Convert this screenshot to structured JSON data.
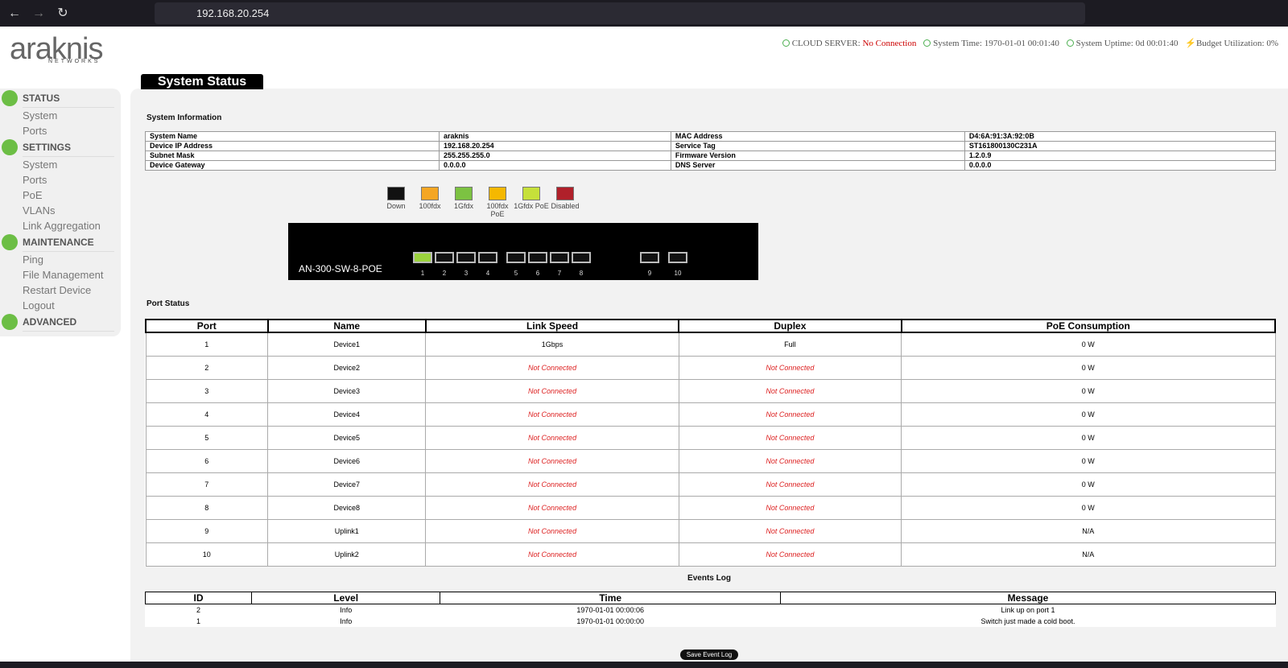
{
  "browser": {
    "url": "192.168.20.254"
  },
  "logo": {
    "name": "araknis",
    "tagline": "NETWORKS"
  },
  "status_bar": {
    "cloud_label": "CLOUD SERVER:",
    "cloud_value": "No Connection",
    "time_label": "System Time:",
    "time_value": "1970-01-01 00:01:40",
    "uptime_label": "System Uptime:",
    "uptime_value": "0d 00:01:40",
    "budget_label": "Budget Utilization:",
    "budget_value": "0%"
  },
  "sidebar": [
    {
      "title": "STATUS",
      "items": [
        "System",
        "Ports"
      ]
    },
    {
      "title": "SETTINGS",
      "items": [
        "System",
        "Ports",
        "PoE",
        "VLANs",
        "Link Aggregation"
      ]
    },
    {
      "title": "MAINTENANCE",
      "items": [
        "Ping",
        "File Management",
        "Restart Device",
        "Logout"
      ]
    },
    {
      "title": "ADVANCED",
      "items": []
    }
  ],
  "page_title": "System Status",
  "system_info": {
    "title": "System Information",
    "rows": [
      [
        "System Name",
        "araknis",
        "MAC Address",
        "D4:6A:91:3A:92:0B"
      ],
      [
        "Device IP Address",
        "192.168.20.254",
        "Service Tag",
        "ST161800130C231A"
      ],
      [
        "Subnet Mask",
        "255.255.255.0",
        "Firmware Version",
        "1.2.0.9"
      ],
      [
        "Device Gateway",
        "0.0.0.0",
        "DNS Server",
        "0.0.0.0"
      ]
    ]
  },
  "legend": [
    {
      "label": "Down",
      "color": "#111111"
    },
    {
      "label": "100fdx",
      "color": "#f5a623"
    },
    {
      "label": "1Gfdx",
      "color": "#7cc242"
    },
    {
      "label": "100fdx PoE",
      "color": "#f5b800"
    },
    {
      "label": "1Gfdx PoE",
      "color": "#c6e03a"
    },
    {
      "label": "Disabled",
      "color": "#b0202a"
    }
  ],
  "switch": {
    "model": "AN-300-SW-8-POE",
    "ports": [
      {
        "label": "1",
        "color": "#9bd33d"
      },
      {
        "label": "2",
        "color": "#111111"
      },
      {
        "label": "3",
        "color": "#111111"
      },
      {
        "label": "4",
        "color": "#111111"
      },
      {
        "label": "5",
        "color": "#111111"
      },
      {
        "label": "6",
        "color": "#111111"
      },
      {
        "label": "7",
        "color": "#111111"
      },
      {
        "label": "8",
        "color": "#111111"
      },
      {
        "label": "9",
        "color": "#111111"
      },
      {
        "label": "10",
        "color": "#111111"
      }
    ]
  },
  "port_status": {
    "title": "Port Status",
    "columns": [
      "Port",
      "Name",
      "Link Speed",
      "Duplex",
      "PoE Consumption"
    ],
    "rows": [
      {
        "cells": [
          "1",
          "Device1",
          "1Gbps",
          "Full",
          "0 W"
        ],
        "connected": true
      },
      {
        "cells": [
          "2",
          "Device2",
          "Not Connected",
          "Not Connected",
          "0 W"
        ],
        "connected": false
      },
      {
        "cells": [
          "3",
          "Device3",
          "Not Connected",
          "Not Connected",
          "0 W"
        ],
        "connected": false
      },
      {
        "cells": [
          "4",
          "Device4",
          "Not Connected",
          "Not Connected",
          "0 W"
        ],
        "connected": false
      },
      {
        "cells": [
          "5",
          "Device5",
          "Not Connected",
          "Not Connected",
          "0 W"
        ],
        "connected": false
      },
      {
        "cells": [
          "6",
          "Device6",
          "Not Connected",
          "Not Connected",
          "0 W"
        ],
        "connected": false
      },
      {
        "cells": [
          "7",
          "Device7",
          "Not Connected",
          "Not Connected",
          "0 W"
        ],
        "connected": false
      },
      {
        "cells": [
          "8",
          "Device8",
          "Not Connected",
          "Not Connected",
          "0 W"
        ],
        "connected": false
      },
      {
        "cells": [
          "9",
          "Uplink1",
          "Not Connected",
          "Not Connected",
          "N/A"
        ],
        "connected": false
      },
      {
        "cells": [
          "10",
          "Uplink2",
          "Not Connected",
          "Not Connected",
          "N/A"
        ],
        "connected": false
      }
    ]
  },
  "events_log": {
    "title": "Events Log",
    "columns": [
      "ID",
      "Level",
      "Time",
      "Message"
    ],
    "rows": [
      [
        "2",
        "Info",
        "1970-01-01 00:00:06",
        "Link up on port 1"
      ],
      [
        "1",
        "Info",
        "1970-01-01 00:00:00",
        "Switch just made a cold boot."
      ]
    ]
  },
  "save_button": "Save Event Log"
}
